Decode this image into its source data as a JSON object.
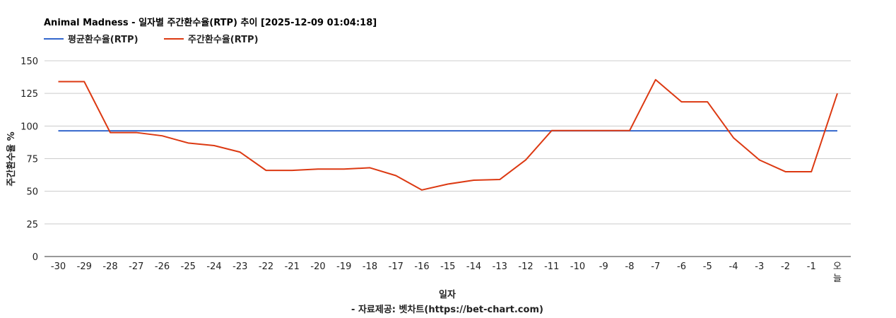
{
  "chart_data": {
    "type": "line",
    "title": "Animal Madness - 일자별 주간환수율(RTP) 추이 [2025-12-09 01:04:18]",
    "xlabel": "일자",
    "ylabel": "주간환수율 %",
    "source_note": "- 자료제공: 벳차트(https://bet-chart.com)",
    "ylim": [
      0,
      150
    ],
    "yticks": [
      0,
      25,
      50,
      75,
      100,
      125,
      150
    ],
    "grid": true,
    "legend_position": "top-left",
    "categories": [
      "-30",
      "-29",
      "-28",
      "-27",
      "-26",
      "-25",
      "-24",
      "-23",
      "-22",
      "-21",
      "-20",
      "-19",
      "-18",
      "-17",
      "-16",
      "-15",
      "-14",
      "-13",
      "-12",
      "-11",
      "-10",
      "-9",
      "-8",
      "-7",
      "-6",
      "-5",
      "-4",
      "-3",
      "-2",
      "-1",
      "오늘"
    ],
    "series": [
      {
        "name": "평균환수율(RTP)",
        "color": "#3366cc",
        "values": [
          96.3,
          96.3,
          96.3,
          96.3,
          96.3,
          96.3,
          96.3,
          96.3,
          96.3,
          96.3,
          96.3,
          96.3,
          96.3,
          96.3,
          96.3,
          96.3,
          96.3,
          96.3,
          96.3,
          96.3,
          96.3,
          96.3,
          96.3,
          96.3,
          96.3,
          96.3,
          96.3,
          96.3,
          96.3,
          96.3,
          96.3
        ]
      },
      {
        "name": "주간환수율(RTP)",
        "color": "#dc3912",
        "values": [
          134,
          134,
          95,
          95,
          92.5,
          87,
          85,
          80,
          66,
          66,
          67,
          67,
          68,
          62,
          51,
          55.5,
          58.5,
          59,
          74,
          96.5,
          96.5,
          96.5,
          96.5,
          135.5,
          118.5,
          118.5,
          91,
          74,
          65,
          65,
          125
        ]
      }
    ]
  }
}
